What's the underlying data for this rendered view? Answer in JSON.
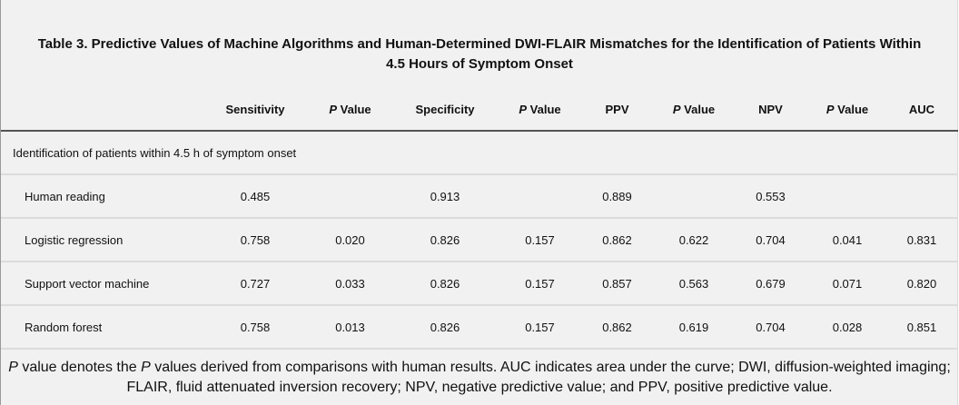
{
  "table": {
    "title_line1": "Table 3. Predictive Values of Machine Algorithms and Human-Determined DWI-FLAIR Mismatches for the Identification of Patients Within",
    "title_line2": "4.5 Hours of Symptom Onset",
    "headers": {
      "sensitivity": "Sensitivity",
      "p_italic": "P",
      "p_rest": " Value",
      "specificity": "Specificity",
      "ppv": "PPV",
      "npv": "NPV",
      "auc": "AUC"
    },
    "section_label": "Identification of patients within 4.5 h of symptom onset",
    "rows": [
      {
        "label": "Human reading",
        "sensitivity": "0.485",
        "p1": "",
        "specificity": "0.913",
        "p2": "",
        "ppv": "0.889",
        "p3": "",
        "npv": "0.553",
        "p4": "",
        "auc": ""
      },
      {
        "label": "Logistic regression",
        "sensitivity": "0.758",
        "p1": "0.020",
        "specificity": "0.826",
        "p2": "0.157",
        "ppv": "0.862",
        "p3": "0.622",
        "npv": "0.704",
        "p4": "0.041",
        "auc": "0.831"
      },
      {
        "label": "Support vector machine",
        "sensitivity": "0.727",
        "p1": "0.033",
        "specificity": "0.826",
        "p2": "0.157",
        "ppv": "0.857",
        "p3": "0.563",
        "npv": "0.679",
        "p4": "0.071",
        "auc": "0.820"
      },
      {
        "label": "Random forest",
        "sensitivity": "0.758",
        "p1": "0.013",
        "specificity": "0.826",
        "p2": "0.157",
        "ppv": "0.862",
        "p3": "0.619",
        "npv": "0.704",
        "p4": "0.028",
        "auc": "0.851"
      }
    ],
    "footnote": {
      "p1": "P",
      "t1": " value denotes the ",
      "p2": "P",
      "t2": " values derived from comparisons with human results. AUC indicates area under the curve; DWI, diffusion-weighted imaging;",
      "line2": "FLAIR, fluid attenuated inversion recovery; NPV, negative predictive value; and PPV, positive predictive value."
    }
  }
}
